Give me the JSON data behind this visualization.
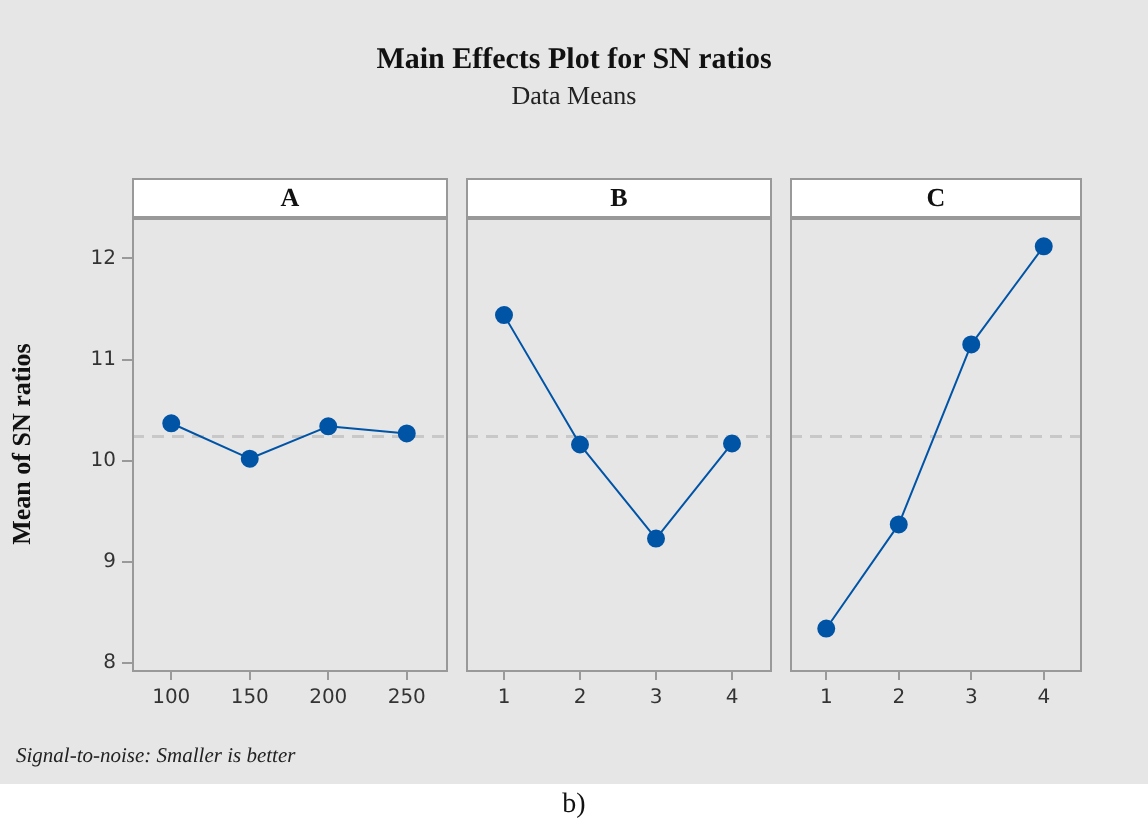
{
  "chart_data": [
    {
      "type": "line",
      "xlabel": "A",
      "ylabel": "Mean of SN ratios",
      "annotations": [
        "Signal-to-noise: Smaller is better",
        "b)"
      ],
      "categories": [
        "100",
        "150",
        "200",
        "250"
      ],
      "series": [
        {
          "color": "#0054a6",
          "values": [
            10.37,
            10.02,
            10.34,
            10.27
          ]
        }
      ],
      "ylim": [
        7.93,
        12.4
      ],
      "yticks": [
        8,
        9,
        10,
        11,
        12
      ],
      "ref_lines": [
        {
          "axis": "y",
          "value": 10.24,
          "color": "#c8c8c8",
          "line_style": "dashed"
        }
      ],
      "grid": false,
      "marker": "circle",
      "line_style": "solid"
    },
    {
      "type": "line",
      "title": "Main Effects Plot for SN ratios",
      "subtitle": "Data Means",
      "xlabel": "B",
      "categories": [
        "1",
        "2",
        "3",
        "4"
      ],
      "series": [
        {
          "color": "#0054a6",
          "values": [
            11.44,
            10.16,
            9.23,
            10.17
          ]
        }
      ],
      "ylim": [
        7.93,
        12.4
      ],
      "yticks": [
        8,
        9,
        10,
        11,
        12
      ],
      "tick_labels": "x",
      "ref_lines": [
        {
          "axis": "y",
          "value": 10.24,
          "color": "#c8c8c8",
          "line_style": "dashed"
        }
      ],
      "grid": false,
      "marker": "circle",
      "line_style": "solid"
    },
    {
      "type": "line",
      "xlabel": "C",
      "categories": [
        "1",
        "2",
        "3",
        "4"
      ],
      "series": [
        {
          "color": "#0054a6",
          "values": [
            8.34,
            9.37,
            11.15,
            12.12
          ]
        }
      ],
      "ylim": [
        7.93,
        12.4
      ],
      "yticks": [
        8,
        9,
        10,
        11,
        12
      ],
      "tick_labels": "x",
      "ref_lines": [
        {
          "axis": "y",
          "value": 10.24,
          "color": "#c8c8c8",
          "line_style": "dashed"
        }
      ],
      "grid": false,
      "marker": "circle",
      "line_style": "solid"
    }
  ]
}
